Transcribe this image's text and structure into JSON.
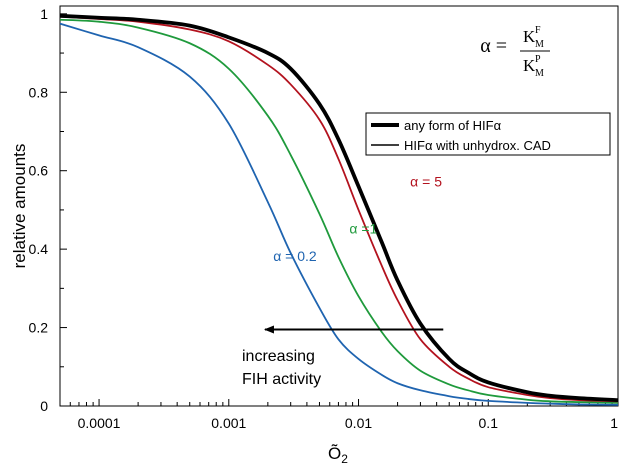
{
  "chart_data": {
    "type": "line",
    "xscale": "log",
    "xlim": [
      5e-05,
      1
    ],
    "ylim": [
      0,
      1.02
    ],
    "x_ticks": [
      0.0001,
      0.001,
      0.01,
      0.1,
      1
    ],
    "x_tick_labels": [
      "0.0001",
      "0.001",
      "0.01",
      "0.1",
      "1"
    ],
    "y_ticks": [
      0,
      0.2,
      0.4,
      0.6,
      0.8,
      1
    ],
    "y_tick_labels": [
      "0",
      "0.2",
      "0.4",
      "0.6",
      "0.8",
      "1"
    ],
    "xlabel": "Õ",
    "xlabel_sub": "2",
    "ylabel": "relative amounts",
    "grid": false,
    "legend": {
      "placement": "top-right",
      "entries": [
        {
          "label": "any form of HIFα",
          "style": "thick"
        },
        {
          "label": "HIFα with unhydrox. CAD",
          "style": "thin"
        }
      ]
    },
    "formula": {
      "lhs": "α =",
      "num_base": "K",
      "num_sup": "F",
      "num_sub": "M",
      "den_base": "K",
      "den_sup": "P",
      "den_sub": "M"
    },
    "series": [
      {
        "label": "any form of HIFα",
        "color": "#000000",
        "width": "thick",
        "x": [
          5e-05,
          0.0001,
          0.0002,
          0.0005,
          0.001,
          0.002,
          0.003,
          0.005,
          0.007,
          0.01,
          0.015,
          0.02,
          0.03,
          0.05,
          0.07,
          0.1,
          0.2,
          0.3,
          0.5,
          1
        ],
        "y": [
          0.995,
          0.99,
          0.985,
          0.97,
          0.94,
          0.9,
          0.86,
          0.77,
          0.68,
          0.56,
          0.42,
          0.32,
          0.21,
          0.12,
          0.085,
          0.06,
          0.035,
          0.026,
          0.02,
          0.015
        ]
      },
      {
        "label": "α = 5",
        "color": "#b3121e",
        "width": "thin",
        "x": [
          5e-05,
          0.0001,
          0.0002,
          0.0005,
          0.001,
          0.002,
          0.003,
          0.005,
          0.007,
          0.01,
          0.015,
          0.02,
          0.03,
          0.05,
          0.07,
          0.1,
          0.2,
          0.3,
          0.5,
          1
        ],
        "y": [
          0.993,
          0.987,
          0.98,
          0.96,
          0.93,
          0.87,
          0.82,
          0.73,
          0.63,
          0.5,
          0.36,
          0.27,
          0.17,
          0.1,
          0.07,
          0.048,
          0.028,
          0.02,
          0.015,
          0.012
        ]
      },
      {
        "label": "α =1",
        "color": "#1f9a3c",
        "width": "thin",
        "x": [
          5e-05,
          0.0001,
          0.0002,
          0.0005,
          0.001,
          0.002,
          0.003,
          0.005,
          0.007,
          0.01,
          0.015,
          0.02,
          0.03,
          0.05,
          0.07,
          0.1,
          0.2,
          0.3,
          0.5,
          1
        ],
        "y": [
          0.985,
          0.98,
          0.965,
          0.925,
          0.86,
          0.74,
          0.64,
          0.49,
          0.38,
          0.28,
          0.19,
          0.14,
          0.09,
          0.055,
          0.04,
          0.028,
          0.016,
          0.012,
          0.01,
          0.008
        ]
      },
      {
        "label": "α = 0.2",
        "color": "#1f64b0",
        "width": "thin",
        "x": [
          5e-05,
          0.0001,
          0.0002,
          0.0005,
          0.001,
          0.002,
          0.003,
          0.005,
          0.007,
          0.01,
          0.015,
          0.02,
          0.03,
          0.05,
          0.07,
          0.1,
          0.2,
          0.3,
          0.5,
          1
        ],
        "y": [
          0.975,
          0.945,
          0.915,
          0.84,
          0.72,
          0.52,
          0.39,
          0.25,
          0.17,
          0.12,
          0.08,
          0.058,
          0.04,
          0.025,
          0.018,
          0.013,
          0.008,
          0.006,
          0.004,
          0.003
        ]
      }
    ],
    "annotations": [
      {
        "text": "α = 5",
        "color": "#b3121e",
        "x": 0.025,
        "y": 0.56
      },
      {
        "text": "α =1",
        "color": "#1f9a3c",
        "x": 0.0085,
        "y": 0.44
      },
      {
        "text": "α = 0.2",
        "color": "#1f64b0",
        "x": 0.0022,
        "y": 0.37
      }
    ],
    "arrow": {
      "x_from": 0.045,
      "x_to": 0.0019,
      "y": 0.195
    },
    "arrow_text": [
      "increasing",
      "FIH activity"
    ]
  }
}
